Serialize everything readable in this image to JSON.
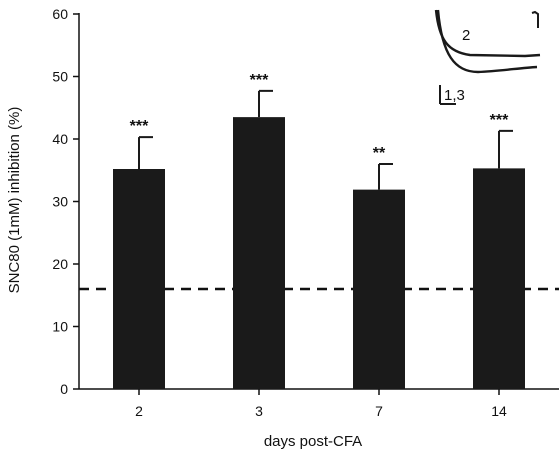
{
  "chart_data": {
    "type": "bar",
    "title": "",
    "xlabel": "days post-CFA",
    "ylabel": "SNC80 (1mM) inhibition (%)",
    "categories": [
      "2",
      "3",
      "7",
      "14"
    ],
    "values": [
      35.2,
      43.5,
      31.9,
      35.3
    ],
    "error_upper": [
      40.3,
      47.7,
      36.0,
      41.3
    ],
    "significance": [
      "***",
      "***",
      "**",
      "***"
    ],
    "ylim": [
      0,
      60
    ],
    "yticks": [
      "0",
      "10",
      "20",
      "30",
      "40",
      "50",
      "60"
    ],
    "reference_line": {
      "value": 16,
      "style": "dashed"
    },
    "bar_color": "#1a1a1a",
    "grid": false,
    "legend": "none",
    "inset": {
      "trace_labels": [
        "2",
        "1,3"
      ],
      "trace_color": "#1a1a1a"
    }
  }
}
